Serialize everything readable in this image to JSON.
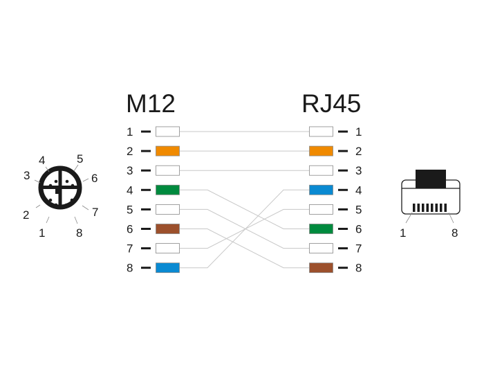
{
  "left_title": "M12",
  "right_title": "RJ45",
  "colors": {
    "white": "#ffffff",
    "orange": "#f08a00",
    "green": "#008a3e",
    "blue": "#0a8ad2",
    "brown": "#9c502c",
    "wire": "#c8c8c8",
    "ink": "#1a1a1a"
  },
  "left_pins": [
    {
      "pin": "1",
      "color": "white"
    },
    {
      "pin": "2",
      "color": "orange"
    },
    {
      "pin": "3",
      "color": "white"
    },
    {
      "pin": "4",
      "color": "green"
    },
    {
      "pin": "5",
      "color": "white"
    },
    {
      "pin": "6",
      "color": "brown"
    },
    {
      "pin": "7",
      "color": "white"
    },
    {
      "pin": "8",
      "color": "blue"
    }
  ],
  "right_pins": [
    {
      "pin": "1",
      "color": "white"
    },
    {
      "pin": "2",
      "color": "orange"
    },
    {
      "pin": "3",
      "color": "white"
    },
    {
      "pin": "4",
      "color": "blue"
    },
    {
      "pin": "5",
      "color": "white"
    },
    {
      "pin": "6",
      "color": "green"
    },
    {
      "pin": "7",
      "color": "white"
    },
    {
      "pin": "8",
      "color": "brown"
    }
  ],
  "wiring": [
    {
      "from": "1",
      "to": "1"
    },
    {
      "from": "2",
      "to": "2"
    },
    {
      "from": "3",
      "to": "3"
    },
    {
      "from": "4",
      "to": "6"
    },
    {
      "from": "5",
      "to": "7"
    },
    {
      "from": "6",
      "to": "8"
    },
    {
      "from": "7",
      "to": "5"
    },
    {
      "from": "8",
      "to": "4"
    }
  ],
  "m12_face_labels": [
    "1",
    "2",
    "3",
    "4",
    "5",
    "6",
    "7",
    "8"
  ],
  "rj45_face_labels": {
    "first": "1",
    "last": "8"
  }
}
